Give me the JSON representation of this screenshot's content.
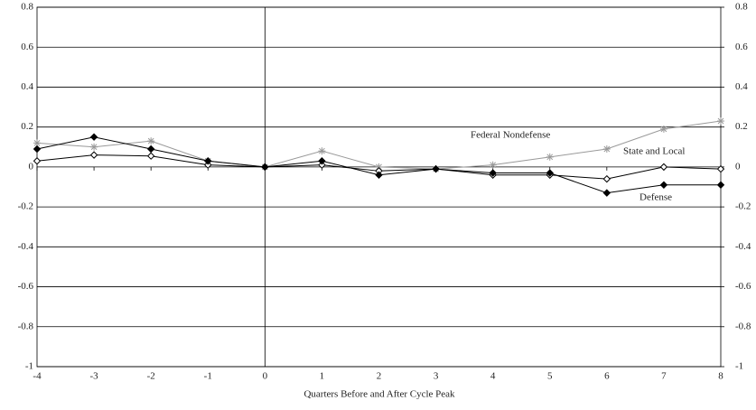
{
  "chart_data": {
    "type": "line",
    "x_label": "Quarters Before and After Cycle Peak",
    "x": [
      -4,
      -3,
      -2,
      -1,
      0,
      1,
      2,
      3,
      4,
      5,
      6,
      7,
      8
    ],
    "xlim": [
      -4,
      8
    ],
    "xticks": [
      -4,
      -3,
      -2,
      -1,
      0,
      1,
      2,
      3,
      4,
      5,
      6,
      7,
      8
    ],
    "ylim": [
      -1,
      0.8
    ],
    "yticks": [
      0.8,
      0.6,
      0.4,
      0.2,
      0,
      -0.2,
      -0.4,
      -0.6,
      -0.8,
      -1
    ],
    "y2lim": [
      -1,
      0.8
    ],
    "y2ticks": [
      0.8,
      0.6,
      0.4,
      0.2,
      0,
      -0.2,
      -0.4,
      -0.6,
      -0.8,
      -1
    ],
    "grid": true,
    "series": [
      {
        "name": "Federal Nondefense",
        "color": "#999999",
        "marker": "asterisk",
        "values": [
          0.12,
          0.1,
          0.13,
          0.03,
          0,
          0.08,
          0,
          -0.01,
          0.01,
          0.05,
          0.09,
          0.19,
          0.23
        ]
      },
      {
        "name": "State and Local",
        "color": "#000000",
        "marker": "open-diamond",
        "values": [
          0.03,
          0.06,
          0.055,
          0.01,
          0,
          0.01,
          -0.02,
          -0.01,
          -0.04,
          -0.04,
          -0.06,
          0,
          -0.01
        ]
      },
      {
        "name": "Defense",
        "color": "#000000",
        "marker": "filled-diamond",
        "values": [
          0.09,
          0.15,
          0.09,
          0.03,
          0,
          0.03,
          -0.04,
          -0.01,
          -0.03,
          -0.03,
          -0.13,
          -0.09,
          -0.09
        ]
      }
    ]
  }
}
